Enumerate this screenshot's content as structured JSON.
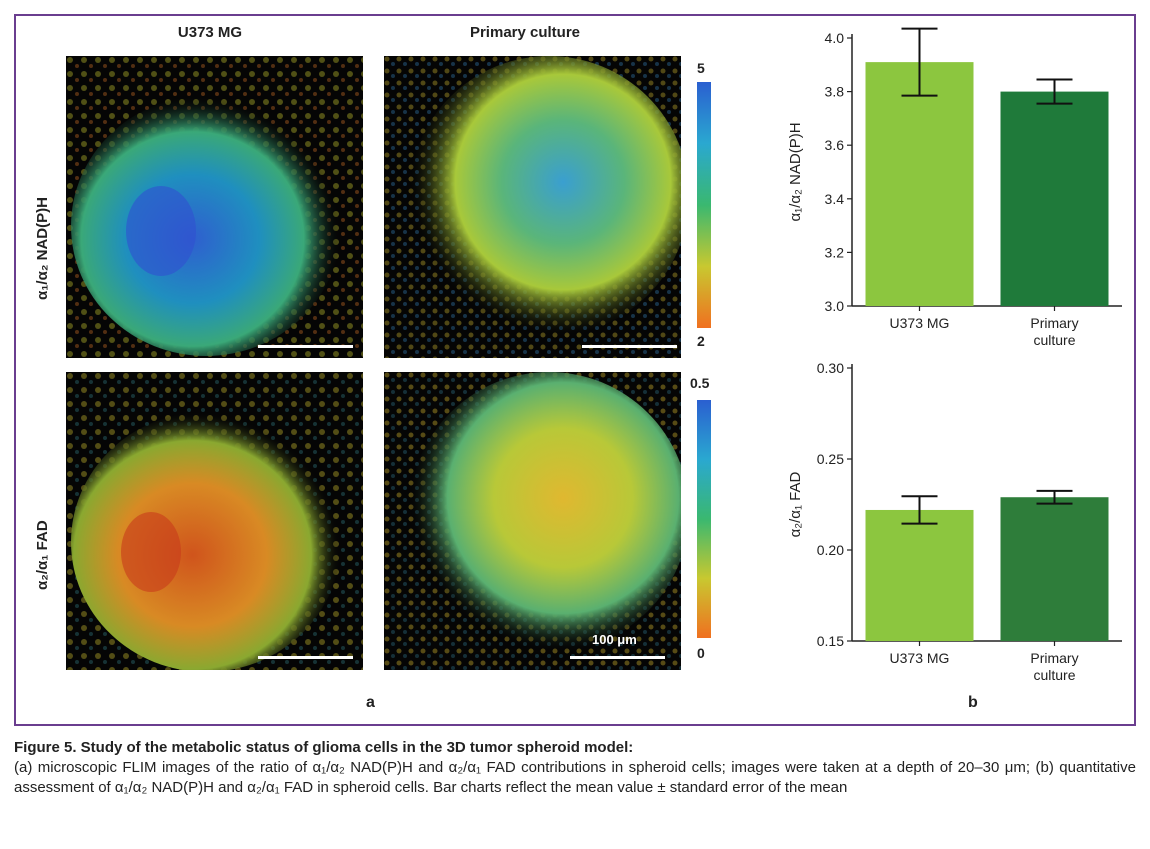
{
  "panel_a": {
    "col_headers": [
      "U373 MG",
      "Primary culture"
    ],
    "row_labels": [
      "α₁/α₂ NAD(P)H",
      "α₂/α₁ FAD"
    ],
    "colorbar_nadph": {
      "max": "5",
      "min": "2"
    },
    "colorbar_fad": {
      "max": "0.5",
      "min": "0"
    },
    "scale_label": "100 μm",
    "letter": "a"
  },
  "panel_b": {
    "letter": "b"
  },
  "chart_data": [
    {
      "type": "bar",
      "categories": [
        "U373 MG",
        "Primary\nculture"
      ],
      "values": [
        3.91,
        3.8
      ],
      "errors": [
        0.125,
        0.045
      ],
      "ylabel": "α₁/α₂ NAD(P)H",
      "ylim": [
        3.0,
        4.0
      ],
      "yticks": [
        "3.0",
        "3.2",
        "3.4",
        "3.6",
        "3.8",
        "4.0"
      ],
      "colors": [
        "#8cc63f",
        "#1f7a3a"
      ]
    },
    {
      "type": "bar",
      "categories": [
        "U373 MG",
        "Primary\nculture"
      ],
      "values": [
        0.222,
        0.229
      ],
      "errors": [
        0.0075,
        0.0035
      ],
      "ylabel": "α₂/α₁ FAD",
      "ylim": [
        0.15,
        0.3
      ],
      "yticks": [
        "0.15",
        "0.20",
        "0.25",
        "0.30"
      ],
      "colors": [
        "#8cc63f",
        "#2e7d3a"
      ]
    }
  ],
  "caption": {
    "title": "Figure 5. Study of the metabolic status of glioma cells in the 3D tumor spheroid model:",
    "body": "(a) microscopic FLIM images of the ratio of α₁/α₂ NAD(P)H and α₂/α₁ FAD contributions in spheroid cells; images were taken at a depth of 20–30 μm; (b) quantitative assessment of α₁/α₂ NAD(P)H and α₂/α₁ FAD in spheroid cells. Bar charts reflect the mean value ± standard error of the mean"
  }
}
